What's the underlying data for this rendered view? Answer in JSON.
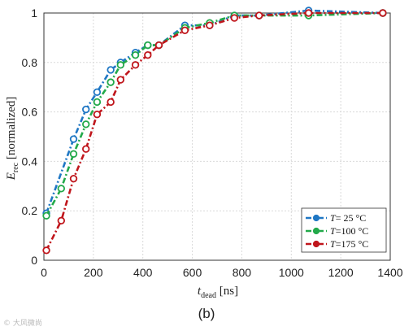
{
  "chart_data": {
    "type": "line",
    "xlabel_main": "t",
    "xlabel_sub": "dead",
    "xlabel_unit": "[ns]",
    "ylabel_main": "E",
    "ylabel_sub": "rec",
    "ylabel_unit": "[normalized]",
    "xlim": [
      0,
      1400
    ],
    "ylim": [
      0,
      1.0
    ],
    "xticks": [
      0,
      200,
      400,
      600,
      800,
      1000,
      1200,
      1400
    ],
    "yticks": [
      0,
      0.2,
      0.4,
      0.6,
      0.8,
      1
    ],
    "grid": true,
    "legend_position": "bottom-right",
    "series": [
      {
        "name": "T= 25 °C",
        "color": "#1f77c4",
        "x": [
          10,
          120,
          170,
          215,
          270,
          310,
          370,
          420,
          465,
          570,
          670,
          770,
          870,
          1070,
          1370
        ],
        "y": [
          0.19,
          0.49,
          0.61,
          0.68,
          0.77,
          0.8,
          0.84,
          0.87,
          0.87,
          0.95,
          0.95,
          0.99,
          0.99,
          1.01,
          1.0
        ]
      },
      {
        "name": "T=100 °C",
        "color": "#22a94a",
        "x": [
          10,
          70,
          120,
          170,
          215,
          270,
          310,
          370,
          420,
          465,
          570,
          670,
          770,
          870,
          1070,
          1370
        ],
        "y": [
          0.18,
          0.29,
          0.43,
          0.55,
          0.64,
          0.72,
          0.79,
          0.83,
          0.87,
          0.87,
          0.94,
          0.96,
          0.99,
          0.99,
          0.99,
          1.0
        ]
      },
      {
        "name": "T=175 °C",
        "color": "#c0161c",
        "x": [
          10,
          70,
          120,
          170,
          215,
          270,
          310,
          370,
          420,
          465,
          570,
          670,
          770,
          870,
          1070,
          1370
        ],
        "y": [
          0.04,
          0.16,
          0.33,
          0.45,
          0.59,
          0.64,
          0.73,
          0.79,
          0.83,
          0.87,
          0.93,
          0.95,
          0.98,
          0.99,
          1.0,
          1.0
        ]
      }
    ],
    "legend": [
      {
        "var": "T",
        "text": "= 25 °C"
      },
      {
        "var": "T",
        "text": "=100 °C"
      },
      {
        "var": "T",
        "text": "=175 °C"
      }
    ]
  },
  "caption": "(b)",
  "watermark": "© 大风微尚"
}
